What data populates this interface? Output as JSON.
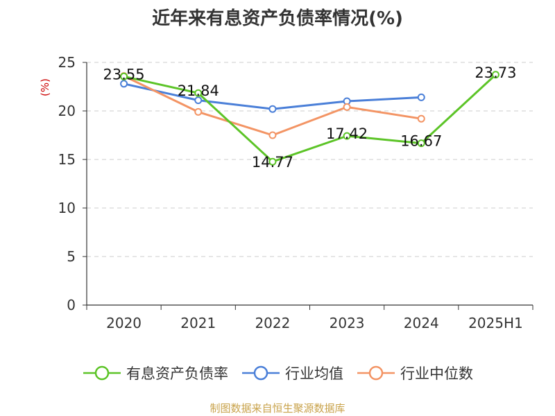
{
  "title": "近年来有息资产负债率情况(%)",
  "source_note": "制图数据来自恒生聚源数据库",
  "colors": {
    "series_1": "#5cc427",
    "series_2": "#4a7fd8",
    "series_3": "#f39464",
    "axis_unit": "#cc0000",
    "grid": "#cccccc",
    "axis": "#333333",
    "source_note": "#c8a24a"
  },
  "chart_data": {
    "type": "line",
    "categories": [
      "2020",
      "2021",
      "2022",
      "2023",
      "2024",
      "2025H1"
    ],
    "ylabel": "(%)",
    "ylim": [
      0,
      25
    ],
    "yticks": [
      0,
      5,
      10,
      15,
      20,
      25
    ],
    "grid": "horizontal dashed",
    "legend_position": "bottom",
    "series": [
      {
        "name": "有息资产负债率",
        "values": [
          23.55,
          21.84,
          14.77,
          17.42,
          16.67,
          23.73
        ],
        "labels": [
          "23.55",
          "21.84",
          "14.77",
          "17.42",
          "16.67",
          "23.73"
        ]
      },
      {
        "name": "行业均值",
        "values": [
          22.8,
          21.1,
          20.2,
          21.0,
          21.4,
          null
        ]
      },
      {
        "name": "行业中位数",
        "values": [
          23.6,
          19.9,
          17.5,
          20.4,
          19.2,
          null
        ]
      }
    ]
  }
}
